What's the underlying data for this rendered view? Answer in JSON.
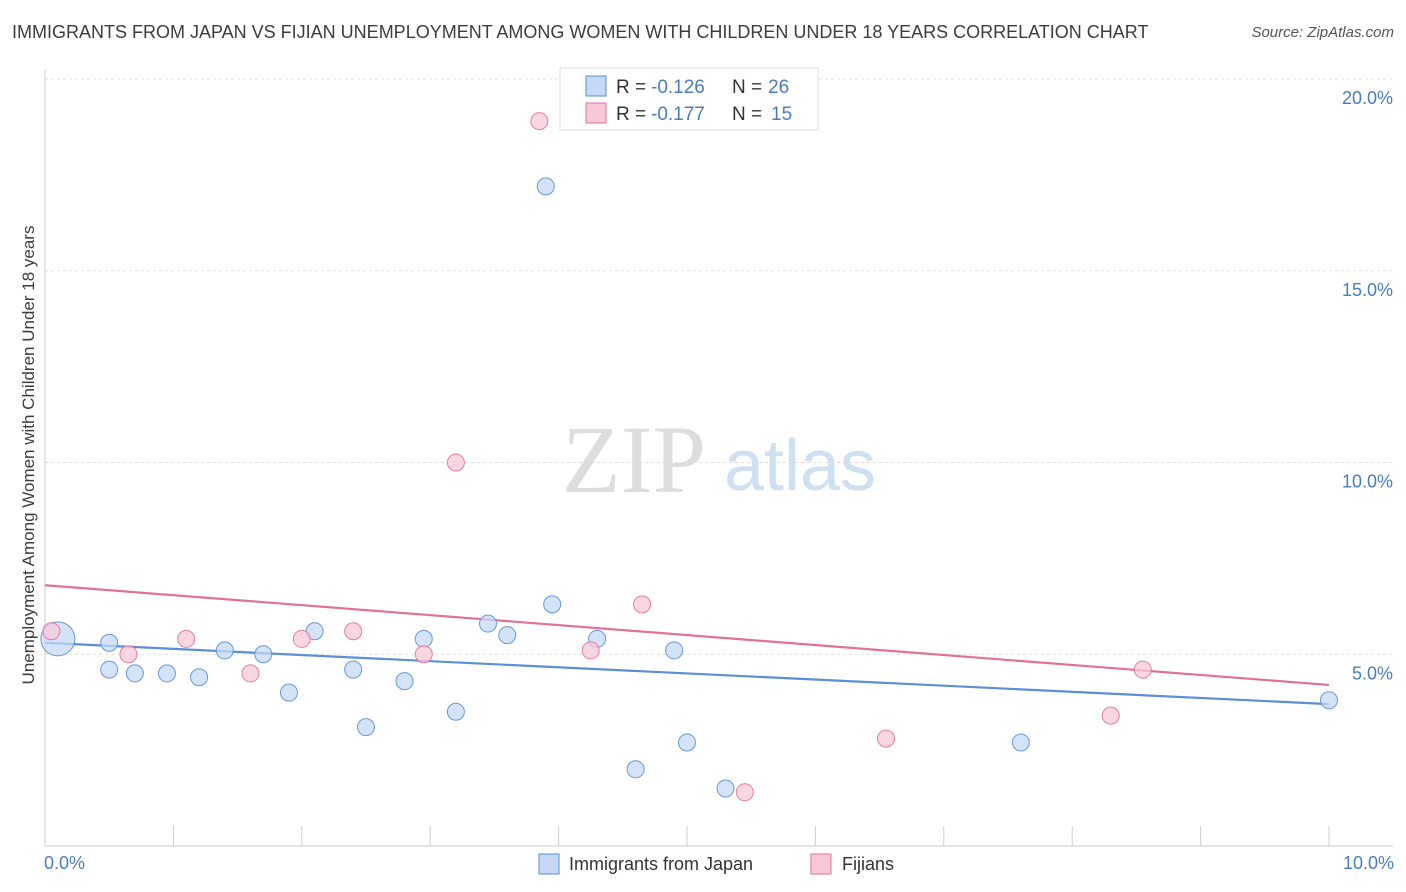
{
  "chart_data": {
    "type": "scatter",
    "title": "IMMIGRANTS FROM JAPAN VS FIJIAN UNEMPLOYMENT AMONG WOMEN WITH CHILDREN UNDER 18 YEARS CORRELATION CHART",
    "source": "Source: ZipAtlas.com",
    "watermark": {
      "zip": "ZIP",
      "atlas": "atlas"
    },
    "ylabel": "Unemployment Among Women with Children Under 18 years",
    "xlim": [
      0,
      10
    ],
    "ylim": [
      0,
      20
    ],
    "x_tick_labels": {
      "left": "0.0%",
      "right": "10.0%"
    },
    "y_ticks": [
      {
        "value": 5,
        "label": "5.0%"
      },
      {
        "value": 10,
        "label": "10.0%"
      },
      {
        "value": 15,
        "label": "15.0%"
      },
      {
        "value": 20,
        "label": "20.0%"
      }
    ],
    "legend_stats": [
      {
        "r_label": "R = ",
        "r_value": "-0.126",
        "n_label": "N = ",
        "n_value": "26"
      },
      {
        "r_label": "R = ",
        "r_value": "-0.177",
        "n_label": "N = ",
        "n_value": "15"
      }
    ],
    "series": [
      {
        "name": "Immigrants from Japan",
        "color": "#5b8fd6",
        "fill": "#c5d9f5",
        "trend": {
          "x": [
            0,
            10
          ],
          "y": [
            5.3,
            3.7
          ]
        },
        "points": [
          {
            "x": 0.1,
            "y": 5.4,
            "big": true
          },
          {
            "x": 0.5,
            "y": 5.3
          },
          {
            "x": 0.5,
            "y": 4.6
          },
          {
            "x": 0.7,
            "y": 4.5
          },
          {
            "x": 0.95,
            "y": 4.5
          },
          {
            "x": 1.2,
            "y": 4.4
          },
          {
            "x": 1.4,
            "y": 5.1
          },
          {
            "x": 1.7,
            "y": 5.0
          },
          {
            "x": 1.9,
            "y": 4.0
          },
          {
            "x": 2.1,
            "y": 5.6
          },
          {
            "x": 2.4,
            "y": 4.6
          },
          {
            "x": 2.5,
            "y": 3.1
          },
          {
            "x": 2.8,
            "y": 4.3
          },
          {
            "x": 2.95,
            "y": 5.4
          },
          {
            "x": 3.2,
            "y": 3.5
          },
          {
            "x": 3.45,
            "y": 5.8
          },
          {
            "x": 3.6,
            "y": 5.5
          },
          {
            "x": 3.9,
            "y": 17.2
          },
          {
            "x": 3.95,
            "y": 6.3
          },
          {
            "x": 4.3,
            "y": 5.4
          },
          {
            "x": 4.6,
            "y": 2.0
          },
          {
            "x": 4.9,
            "y": 5.1
          },
          {
            "x": 5.0,
            "y": 2.7
          },
          {
            "x": 5.3,
            "y": 1.5
          },
          {
            "x": 7.6,
            "y": 2.7
          },
          {
            "x": 10.0,
            "y": 3.8
          }
        ]
      },
      {
        "name": "Fijians",
        "color": "#e07299",
        "fill": "#f8c8d8",
        "trend": {
          "x": [
            0,
            10
          ],
          "y": [
            6.8,
            4.2
          ]
        },
        "points": [
          {
            "x": 0.05,
            "y": 5.6
          },
          {
            "x": 0.65,
            "y": 5.0
          },
          {
            "x": 1.1,
            "y": 5.4
          },
          {
            "x": 1.6,
            "y": 4.5
          },
          {
            "x": 2.0,
            "y": 5.4
          },
          {
            "x": 2.4,
            "y": 5.6
          },
          {
            "x": 2.95,
            "y": 5.0
          },
          {
            "x": 3.2,
            "y": 10.0
          },
          {
            "x": 3.85,
            "y": 18.9
          },
          {
            "x": 4.25,
            "y": 5.1
          },
          {
            "x": 4.65,
            "y": 6.3
          },
          {
            "x": 5.45,
            "y": 1.4
          },
          {
            "x": 6.55,
            "y": 2.8
          },
          {
            "x": 8.3,
            "y": 3.4
          },
          {
            "x": 8.55,
            "y": 4.6
          }
        ]
      }
    ]
  }
}
